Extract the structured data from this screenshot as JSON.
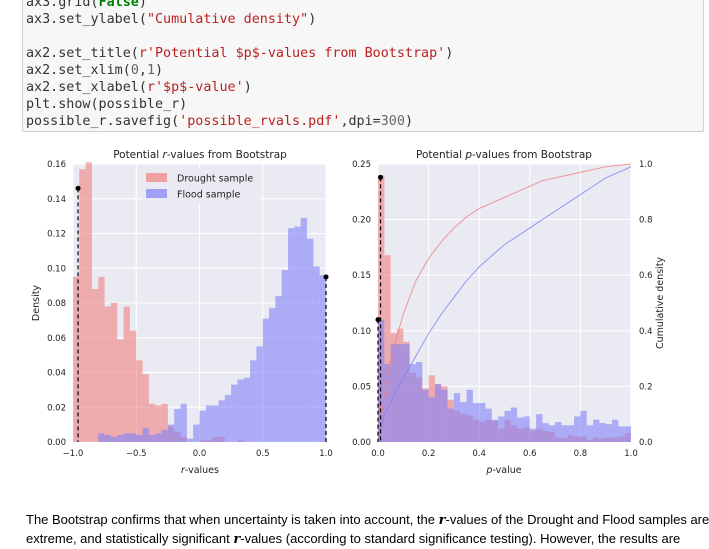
{
  "code_cell": {
    "lines": [
      {
        "segments": [
          {
            "t": "ax3.grid("
          },
          {
            "t": "False",
            "c": "kw"
          },
          {
            "t": ")"
          }
        ]
      },
      {
        "segments": [
          {
            "t": "ax3.set_ylabel("
          },
          {
            "t": "\"Cumulative density\"",
            "c": "str"
          },
          {
            "t": ")"
          }
        ]
      },
      {
        "segments": [
          {
            "t": ""
          }
        ]
      },
      {
        "segments": [
          {
            "t": "ax2.set_title("
          },
          {
            "t": "r'Potential $p$-values from Bootstrap'",
            "c": "str"
          },
          {
            "t": ")"
          }
        ]
      },
      {
        "segments": [
          {
            "t": "ax2.set_xlim("
          },
          {
            "t": "0",
            "c": "num"
          },
          {
            "t": ","
          },
          {
            "t": "1",
            "c": "num"
          },
          {
            "t": ")"
          }
        ]
      },
      {
        "segments": [
          {
            "t": "ax2.set_xlabel("
          },
          {
            "t": "r'$p$-value'",
            "c": "str"
          },
          {
            "t": ")"
          }
        ]
      },
      {
        "segments": [
          {
            "t": "plt.show(possible_r)"
          }
        ]
      },
      {
        "segments": [
          {
            "t": "possible_r.savefig("
          },
          {
            "t": "'possible_rvals.pdf'",
            "c": "str"
          },
          {
            "t": ",dpi="
          },
          {
            "t": "300",
            "c": "num"
          },
          {
            "t": ")"
          }
        ]
      }
    ]
  },
  "colors": {
    "drought": "#f08080",
    "flood": "#8080f8",
    "overlap": "#8060b0",
    "axes_bg": "#eaeaf2",
    "grid": "#ffffff"
  },
  "explanation": {
    "p1": "The Bootstrap confirms that when uncertainty is taken into account, the ",
    "v1": "r",
    "p2": "-values of the Drought and Flood samples are",
    "p3": "extreme, and statistically significant ",
    "v2": "r",
    "p4": "-values (according to standard significance testing). However, the results are"
  },
  "chart_data": [
    {
      "type": "bar",
      "title_before": "Potential ",
      "title_var": "r",
      "title_after": "-values from Bootstrap",
      "xlabel_var": "r",
      "xlabel_after": "-values",
      "ylabel": "Density",
      "xlim": [
        -1.0,
        1.0
      ],
      "ylim": [
        0,
        0.16
      ],
      "x_ticks": [
        "−1.0",
        "−0.5",
        "0.0",
        "0.5",
        "1.0"
      ],
      "y_ticks": [
        "0.00",
        "0.02",
        "0.04",
        "0.06",
        "0.08",
        "0.10",
        "0.12",
        "0.14",
        "0.16"
      ],
      "grid": true,
      "legend_position": "top-center",
      "bin_edges_start": -1.0,
      "bin_width": 0.05,
      "series": [
        {
          "name": "Drought sample",
          "color_key": "drought",
          "values": [
            0.095,
            0.157,
            0.161,
            0.088,
            0.095,
            0.078,
            0.08,
            0.059,
            0.078,
            0.064,
            0.047,
            0.039,
            0.022,
            0.021,
            0.022,
            0.009,
            0.006,
            0.003,
            0.0,
            0.0,
            0.001,
            0.001,
            0.003,
            0.003,
            0.0,
            0.0,
            0.001,
            0.0,
            0.0,
            0.0,
            0.0,
            0.0,
            0.0,
            0.0,
            0.0,
            0.0,
            0.0,
            0.0,
            0.0,
            0.0
          ]
        },
        {
          "name": "Flood sample",
          "color_key": "flood",
          "values": [
            0.0,
            0.0,
            0.0,
            0.0,
            0.005,
            0.004,
            0.003,
            0.004,
            0.005,
            0.005,
            0.004,
            0.008,
            0.004,
            0.005,
            0.007,
            0.01,
            0.019,
            0.022,
            0.002,
            0.01,
            0.018,
            0.021,
            0.021,
            0.024,
            0.027,
            0.033,
            0.036,
            0.037,
            0.047,
            0.055,
            0.071,
            0.077,
            0.084,
            0.099,
            0.123,
            0.124,
            0.129,
            0.117,
            0.101,
            0.096
          ]
        }
      ],
      "markers": [
        {
          "x": -0.96,
          "y": 0.146
        },
        {
          "x": 1.0,
          "y": 0.095
        }
      ]
    },
    {
      "type": "bar",
      "title_before": "Potential ",
      "title_var": "p",
      "title_after": "-values from Bootstrap",
      "xlabel_var": "p",
      "xlabel_after": "-value",
      "ylabel": "",
      "y2label": "Cumulative density",
      "xlim": [
        0.0,
        1.0
      ],
      "ylim": [
        0,
        0.25
      ],
      "y2lim": [
        0,
        1.0
      ],
      "x_ticks": [
        "0.0",
        "0.2",
        "0.4",
        "0.6",
        "0.8",
        "1.0"
      ],
      "y_ticks": [
        "0.00",
        "0.05",
        "0.10",
        "0.15",
        "0.20",
        "0.25"
      ],
      "y2_ticks": [
        "0.0",
        "0.2",
        "0.4",
        "0.6",
        "0.8",
        "1.0"
      ],
      "grid": true,
      "bin_edges_start": 0.0,
      "bin_width": 0.025,
      "series": [
        {
          "name": "Drought sample",
          "color_key": "drought",
          "values": [
            0.24,
            0.168,
            0.098,
            0.102,
            0.09,
            0.062,
            0.058,
            0.048,
            0.06,
            0.052,
            0.05,
            0.038,
            0.028,
            0.025,
            0.024,
            0.02,
            0.018,
            0.02,
            0.019,
            0.012,
            0.02,
            0.015,
            0.012,
            0.013,
            0.01,
            0.012,
            0.01,
            0.009,
            0.004,
            0.003,
            0.006,
            0.005,
            0.005,
            0.002,
            0.004,
            0.003,
            0.004,
            0.004,
            0.005,
            0.008
          ]
        },
        {
          "name": "Flood sample",
          "color_key": "flood",
          "values": [
            0.11,
            0.07,
            0.088,
            0.088,
            0.088,
            0.07,
            0.072,
            0.047,
            0.04,
            0.052,
            0.047,
            0.03,
            0.044,
            0.036,
            0.047,
            0.035,
            0.035,
            0.03,
            0.02,
            0.023,
            0.028,
            0.031,
            0.022,
            0.023,
            0.012,
            0.025,
            0.017,
            0.015,
            0.018,
            0.015,
            0.015,
            0.023,
            0.028,
            0.015,
            0.02,
            0.017,
            0.016,
            0.02,
            0.014,
            0.014
          ]
        }
      ],
      "cdf_x": [
        0.0,
        0.025,
        0.05,
        0.075,
        0.1,
        0.15,
        0.2,
        0.25,
        0.3,
        0.35,
        0.4,
        0.45,
        0.5,
        0.55,
        0.6,
        0.65,
        0.7,
        0.75,
        0.8,
        0.85,
        0.9,
        0.95,
        1.0
      ],
      "cdf": [
        {
          "color_key": "drought",
          "values": [
            0.0,
            0.17,
            0.29,
            0.38,
            0.46,
            0.58,
            0.66,
            0.72,
            0.77,
            0.81,
            0.84,
            0.86,
            0.88,
            0.9,
            0.92,
            0.94,
            0.95,
            0.96,
            0.97,
            0.98,
            0.99,
            0.995,
            1.0
          ]
        },
        {
          "color_key": "flood",
          "values": [
            0.0,
            0.1,
            0.14,
            0.19,
            0.23,
            0.31,
            0.39,
            0.46,
            0.52,
            0.58,
            0.63,
            0.67,
            0.71,
            0.74,
            0.77,
            0.8,
            0.83,
            0.86,
            0.89,
            0.92,
            0.95,
            0.97,
            0.99
          ]
        }
      ],
      "markers": [
        {
          "x": 0.01,
          "y": 0.238
        },
        {
          "x": 0.0,
          "y": 0.11
        }
      ]
    }
  ]
}
